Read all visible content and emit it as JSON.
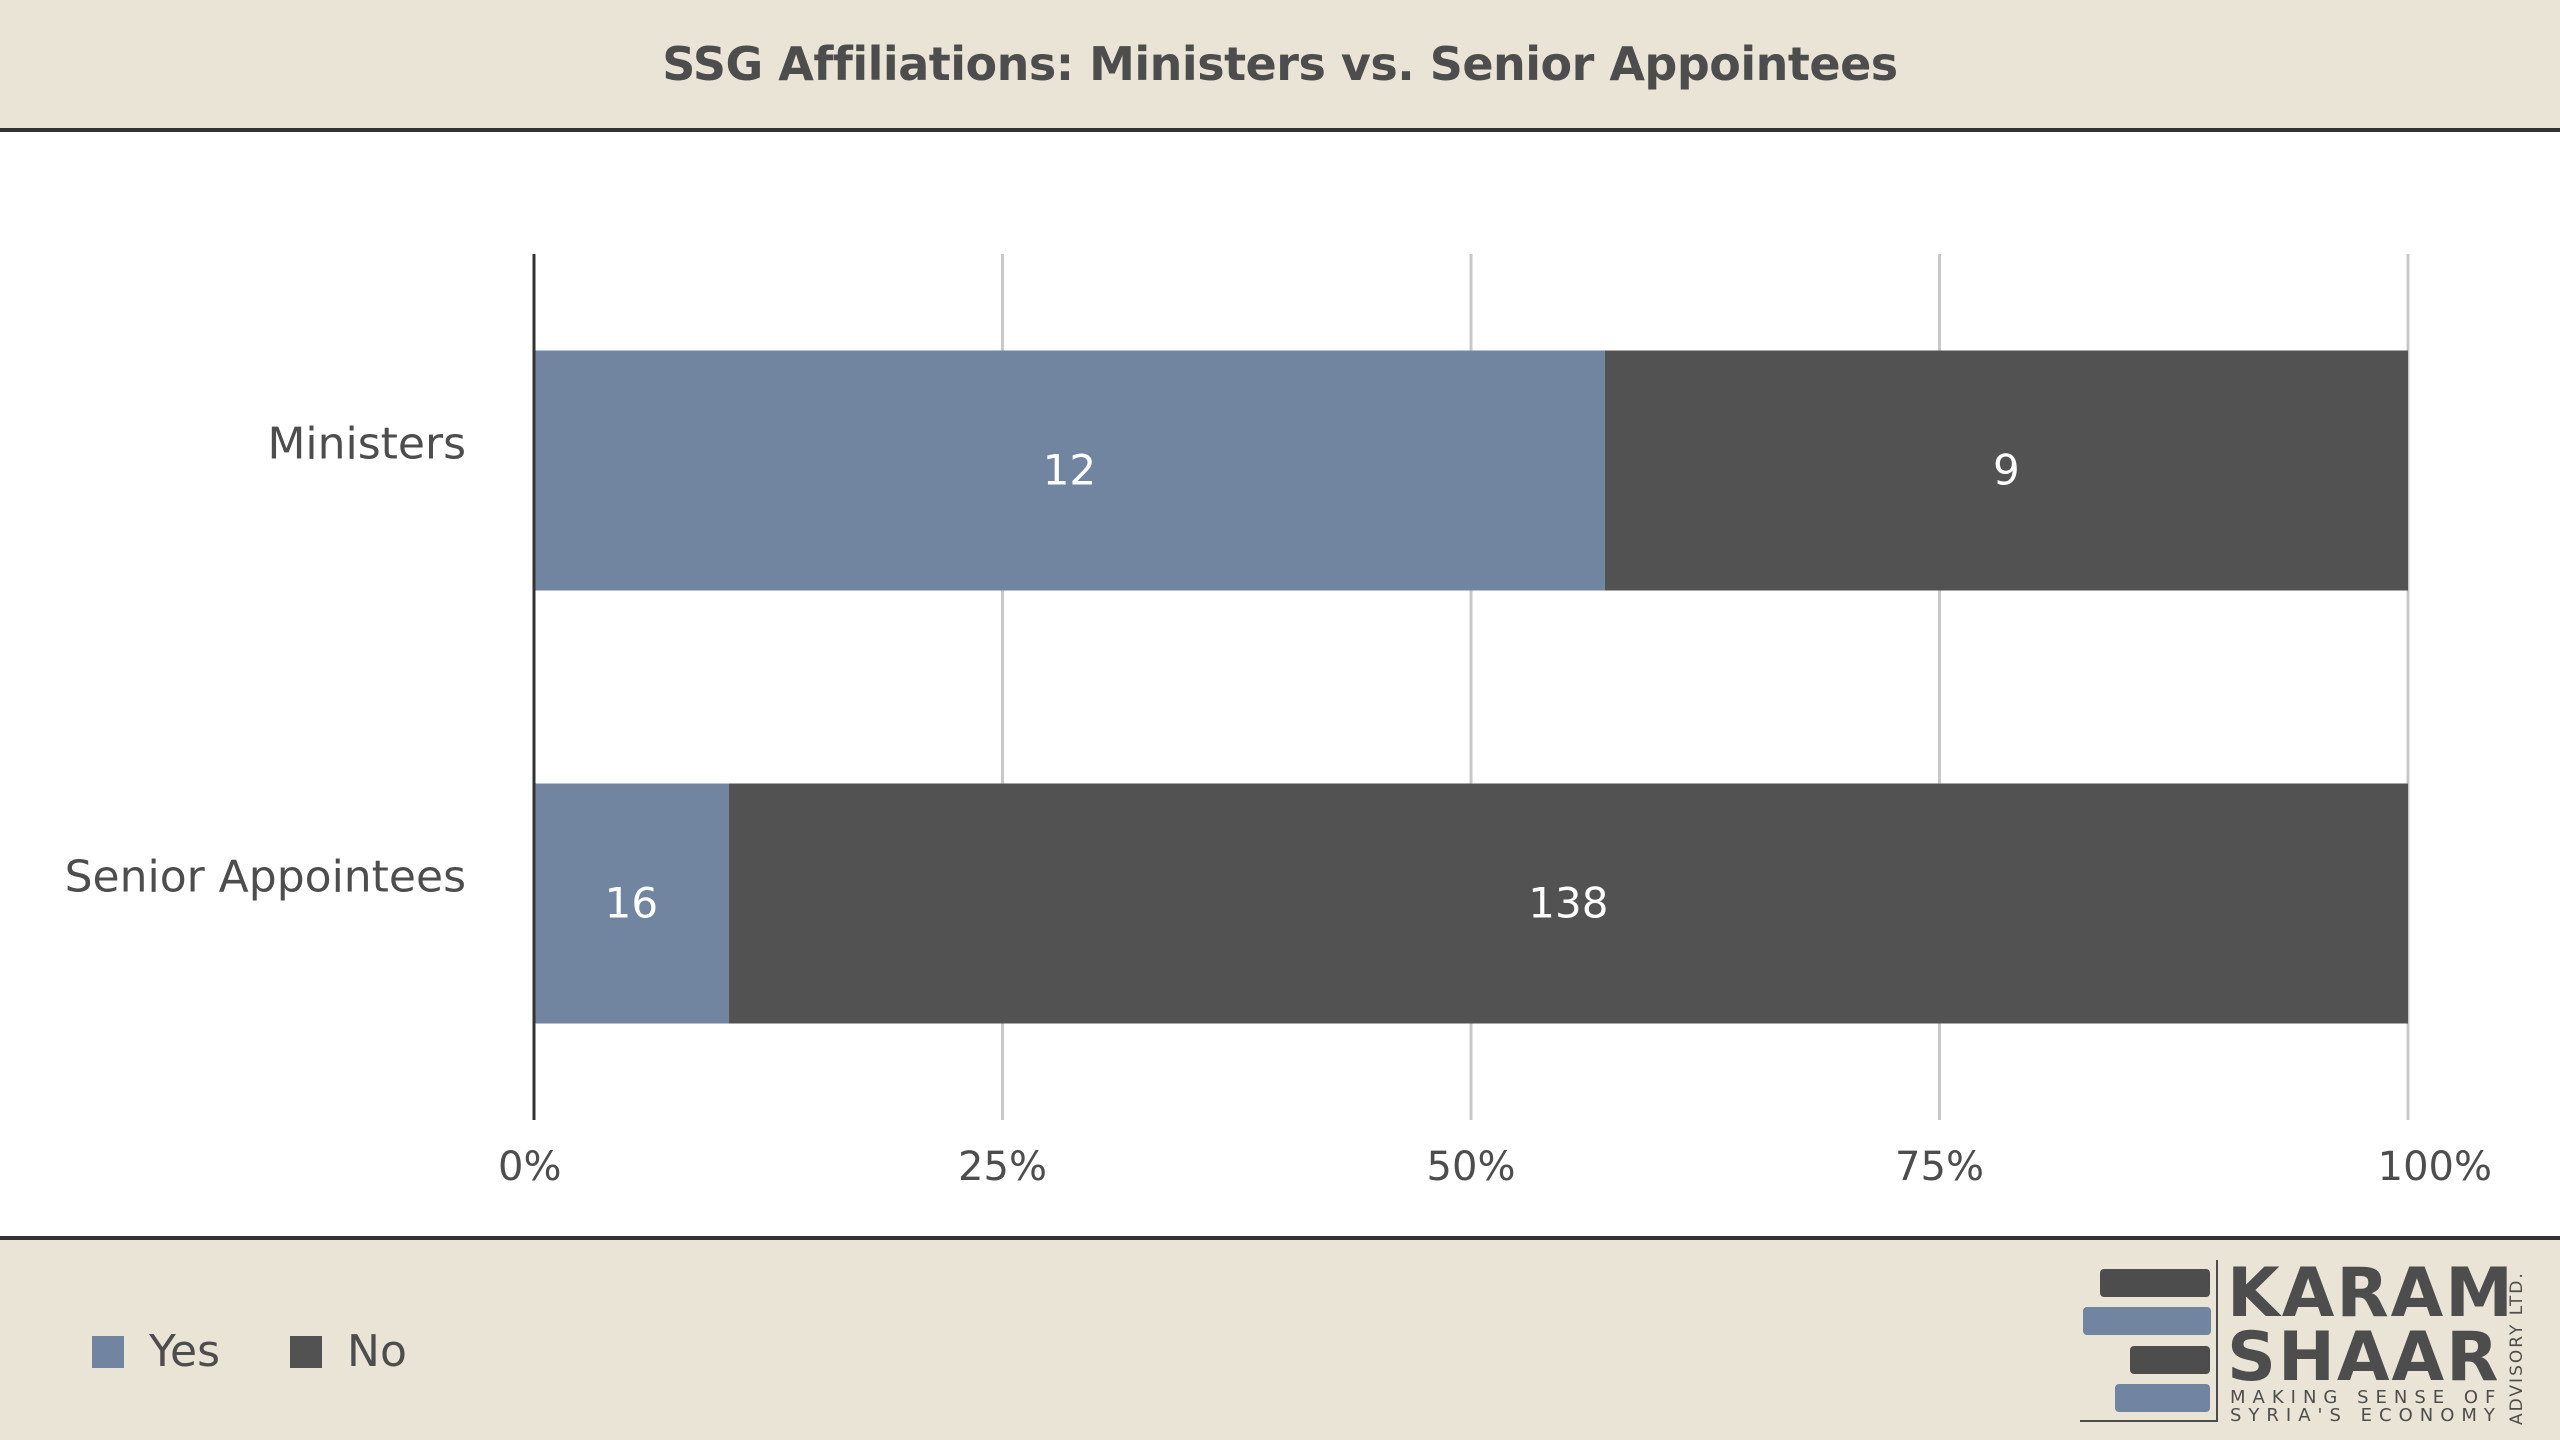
{
  "header": {
    "title": "SSG Affiliations: Ministers vs. Senior Appointees"
  },
  "chart_data": {
    "type": "bar",
    "orientation": "horizontal",
    "stacked": "percent",
    "title": "SSG Affiliations: Ministers vs. Senior Appointees",
    "categories": [
      "Ministers",
      "Senior Appointees"
    ],
    "series": [
      {
        "name": "Yes",
        "values": [
          12,
          16
        ],
        "color": "#7185a1"
      },
      {
        "name": "No",
        "values": [
          9,
          138
        ],
        "color": "#525252"
      }
    ],
    "xlim": [
      0,
      100
    ],
    "x_ticks": [
      "0%",
      "25%",
      "50%",
      "75%",
      "100%"
    ],
    "grid": true,
    "legend_position": "bottom-left",
    "data_labels": true
  },
  "legend": {
    "items": [
      {
        "label": "Yes",
        "color": "#7185a1"
      },
      {
        "label": "No",
        "color": "#525252"
      }
    ]
  },
  "logo": {
    "line1": "KARAM",
    "line2": "SHAAR",
    "tagline1": "MAKING SENSE OF",
    "tagline2": "SYRIA'S ECONOMY",
    "side": "ADVISORY LTD."
  },
  "colors": {
    "background": "#e9e4d6",
    "accent_blue": "#7185a1",
    "dark_gray": "#525252",
    "text": "#4d4d4d"
  }
}
